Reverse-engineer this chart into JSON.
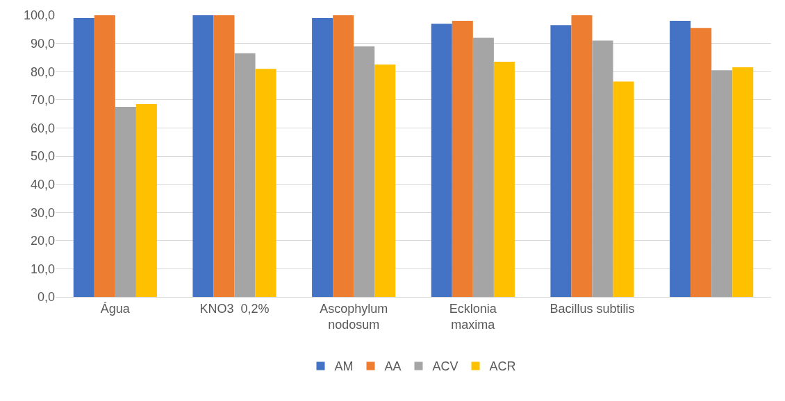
{
  "chart_data": {
    "type": "bar",
    "categories": [
      "Água",
      "KNO3  0,2%",
      "Ascophylum\nnodosum",
      "Ecklonia\nmaxima",
      "Bacillus subtilis",
      null
    ],
    "series": [
      {
        "name": "AM",
        "color": "#4472c4",
        "values": [
          99,
          100,
          99,
          97,
          96.5,
          98
        ]
      },
      {
        "name": "AA",
        "color": "#ed7d31",
        "values": [
          100,
          100,
          100,
          98,
          100,
          95.5
        ]
      },
      {
        "name": "ACV",
        "color": "#a5a5a5",
        "values": [
          67.5,
          86.5,
          89,
          92,
          91,
          80.5
        ]
      },
      {
        "name": "ACR",
        "color": "#ffc000",
        "values": [
          68.5,
          81,
          82.5,
          83.5,
          76.5,
          81.5
        ]
      }
    ],
    "ylim": [
      0,
      100
    ],
    "yticks": [
      {
        "value": 0,
        "label": "0,0"
      },
      {
        "value": 10,
        "label": "10,0"
      },
      {
        "value": 20,
        "label": "20,0"
      },
      {
        "value": 30,
        "label": "30,0"
      },
      {
        "value": 40,
        "label": "40,0"
      },
      {
        "value": 50,
        "label": "50,0"
      },
      {
        "value": 60,
        "label": "60,0"
      },
      {
        "value": 70,
        "label": "70,0"
      },
      {
        "value": 80,
        "label": "80,0"
      },
      {
        "value": 90,
        "label": "90,0"
      },
      {
        "value": 100,
        "label": "100,0"
      }
    ],
    "grid": "y",
    "legend": "bottom"
  }
}
